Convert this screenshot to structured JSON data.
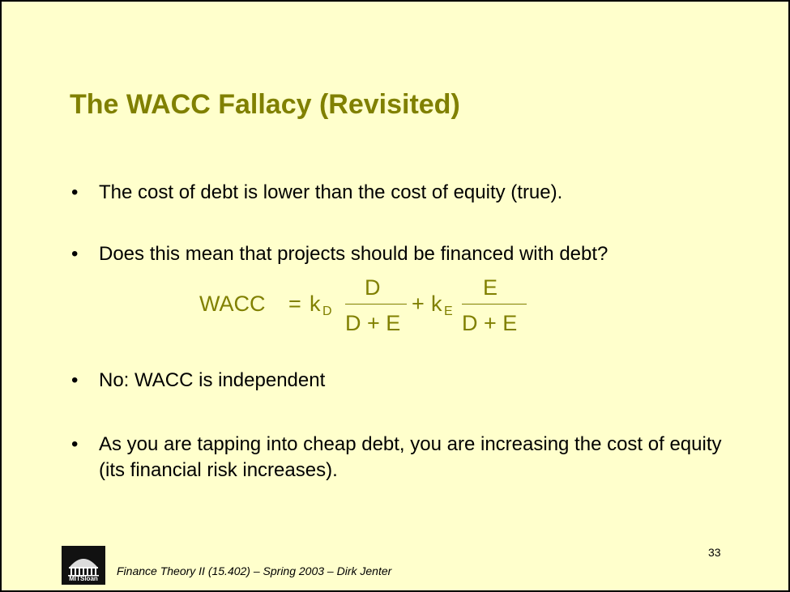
{
  "slide": {
    "title": "The WACC Fallacy (Revisited)",
    "bullets": [
      "The cost of debt is lower than the cost of equity (true).",
      "Does this mean that projects should be financed with debt?",
      "No: WACC is independent",
      "As you are tapping into cheap debt, you are increasing the cost of equity (its financial risk increases)."
    ],
    "bullet_symbol": "•",
    "equation": {
      "lhs": "WACC",
      "equals": "=",
      "k1": "k",
      "sub1": "D",
      "num1": "D",
      "den1": "D + E",
      "plus": "+",
      "k2": "k",
      "sub2": "E",
      "num2": "E",
      "den2": "D + E"
    },
    "page_number": "33",
    "logo": {
      "label": "MITSloan",
      "icon": "mit-dome-icon"
    },
    "footer": "Finance Theory II (15.402) – Spring 2003 – Dirk Jenter",
    "colors": {
      "background": "#ffffcc",
      "title": "#808000",
      "text": "#000000"
    }
  }
}
